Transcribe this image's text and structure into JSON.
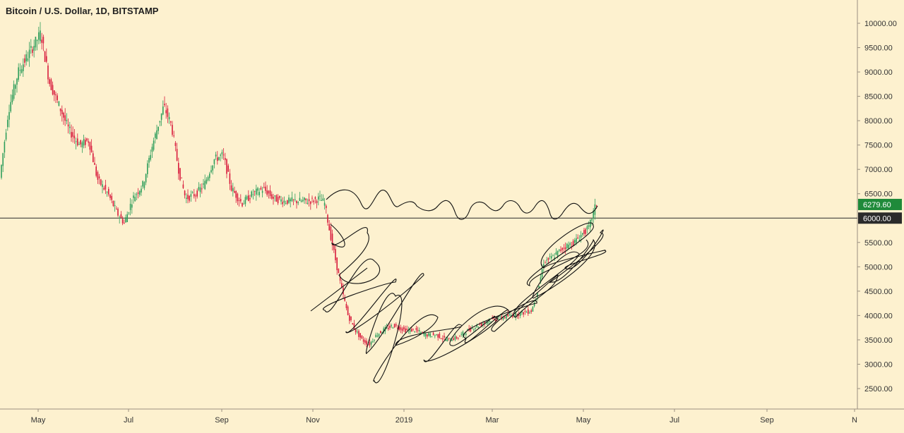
{
  "chart_data": {
    "type": "candlestick",
    "title": "Bitcoin / U.S. Dollar, 1D, BITSTAMP",
    "y_ticks": [
      "10000.00",
      "9500.00",
      "9000.00",
      "8500.00",
      "8000.00",
      "7500.00",
      "7000.00",
      "6500.00",
      "5500.00",
      "5000.00",
      "4500.00",
      "4000.00",
      "3500.00",
      "3000.00",
      "2500.00"
    ],
    "x_ticks": [
      "May",
      "Jul",
      "Sep",
      "Nov",
      "2019",
      "Mar",
      "May",
      "Jul",
      "Sep",
      "N"
    ],
    "last_price": "6279.60",
    "last_price_value": 6279.6,
    "level_label": "6000.00",
    "level_value": 6000,
    "ylim": [
      2200,
      10300
    ],
    "series_path": [
      [
        0,
        6600
      ],
      [
        14,
        8200
      ],
      [
        28,
        9000
      ],
      [
        44,
        9400
      ],
      [
        60,
        9800
      ],
      [
        72,
        8800
      ],
      [
        86,
        8300
      ],
      [
        100,
        7800
      ],
      [
        115,
        7500
      ],
      [
        128,
        7600
      ],
      [
        140,
        6800
      ],
      [
        155,
        6500
      ],
      [
        168,
        6100
      ],
      [
        178,
        5900
      ],
      [
        190,
        6400
      ],
      [
        205,
        6700
      ],
      [
        218,
        7500
      ],
      [
        226,
        7900
      ],
      [
        234,
        8300
      ],
      [
        245,
        7900
      ],
      [
        255,
        7000
      ],
      [
        265,
        6400
      ],
      [
        280,
        6500
      ],
      [
        292,
        6700
      ],
      [
        305,
        7200
      ],
      [
        318,
        7300
      ],
      [
        330,
        6600
      ],
      [
        345,
        6300
      ],
      [
        360,
        6500
      ],
      [
        375,
        6600
      ],
      [
        390,
        6400
      ],
      [
        405,
        6350
      ],
      [
        420,
        6350
      ],
      [
        440,
        6350
      ],
      [
        455,
        6400
      ],
      [
        462,
        6300
      ],
      [
        468,
        5800
      ],
      [
        475,
        5300
      ],
      [
        485,
        4600
      ],
      [
        495,
        4000
      ],
      [
        505,
        3700
      ],
      [
        515,
        3500
      ],
      [
        525,
        3400
      ],
      [
        535,
        3600
      ],
      [
        545,
        3700
      ],
      [
        560,
        3800
      ],
      [
        575,
        3700
      ],
      [
        590,
        3700
      ],
      [
        605,
        3600
      ],
      [
        620,
        3600
      ],
      [
        635,
        3500
      ],
      [
        650,
        3550
      ],
      [
        665,
        3700
      ],
      [
        680,
        3800
      ],
      [
        695,
        3900
      ],
      [
        710,
        3950
      ],
      [
        725,
        4000
      ],
      [
        740,
        4050
      ],
      [
        755,
        4100
      ],
      [
        765,
        4600
      ],
      [
        772,
        5100
      ],
      [
        785,
        5200
      ],
      [
        800,
        5400
      ],
      [
        815,
        5500
      ],
      [
        828,
        5700
      ],
      [
        836,
        5800
      ],
      [
        842,
        6100
      ],
      [
        846,
        6279.6
      ]
    ]
  }
}
